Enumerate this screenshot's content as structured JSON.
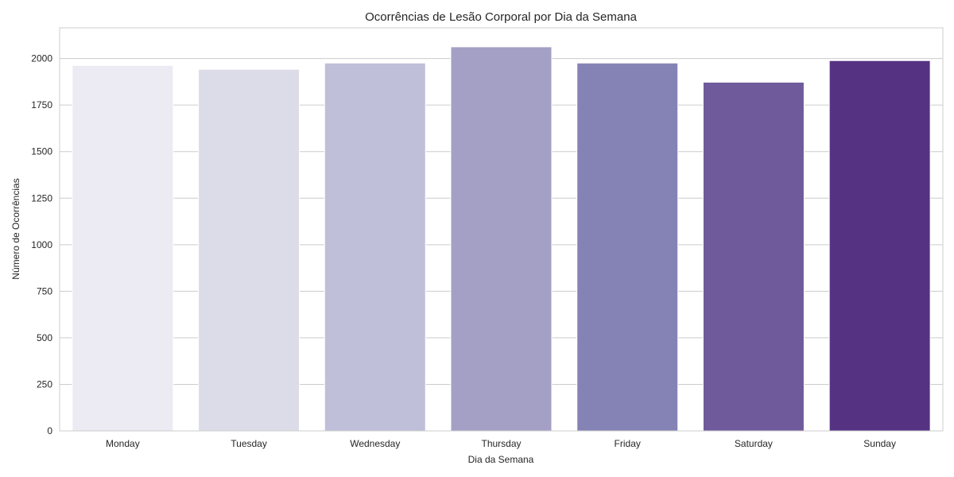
{
  "chart_data": {
    "type": "bar",
    "title": "Ocorrências de Lesão Corporal por Dia da Semana",
    "xlabel": "Dia da Semana",
    "ylabel": "Número de Ocorrências",
    "categories": [
      "Monday",
      "Tuesday",
      "Wednesday",
      "Thursday",
      "Friday",
      "Saturday",
      "Sunday"
    ],
    "values": [
      1963,
      1942,
      1976,
      2063,
      1976,
      1873,
      1989
    ],
    "ylim": [
      0,
      2165
    ],
    "yticks": [
      0,
      250,
      500,
      750,
      1000,
      1250,
      1500,
      1750,
      2000
    ],
    "grid": "horizontal",
    "colors": [
      "#eceaf3",
      "#dcdbe8",
      "#bfbfd9",
      "#a49fc4",
      "#8583b5",
      "#6f5a9b",
      "#553282"
    ]
  }
}
